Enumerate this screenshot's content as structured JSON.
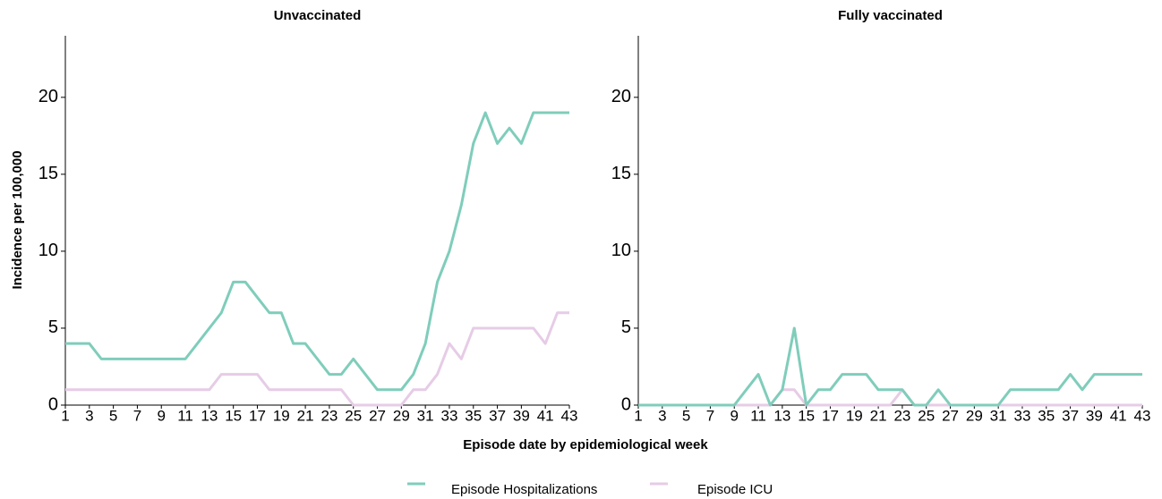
{
  "chart_data": [
    {
      "type": "line",
      "title": "Unvaccinated",
      "xlabel": "Episode date by epidemiological week",
      "ylabel": "Incidence per 100,000",
      "x": [
        1,
        2,
        3,
        4,
        5,
        6,
        7,
        8,
        9,
        10,
        11,
        12,
        13,
        14,
        15,
        16,
        17,
        18,
        19,
        20,
        21,
        22,
        23,
        24,
        25,
        26,
        27,
        28,
        29,
        30,
        31,
        32,
        33,
        34,
        35,
        36,
        37,
        38,
        39,
        40,
        41,
        42,
        43
      ],
      "series": [
        {
          "name": "Episode Hospitalizations",
          "color": "#7fcdbb",
          "values": [
            4,
            4,
            4,
            3,
            3,
            3,
            3,
            3,
            3,
            3,
            3,
            4,
            5,
            6,
            8,
            8,
            7,
            6,
            6,
            4,
            4,
            3,
            2,
            2,
            3,
            2,
            1,
            1,
            1,
            2,
            4,
            8,
            10,
            13,
            17,
            19,
            17,
            18,
            17,
            19,
            19,
            19,
            19
          ]
        },
        {
          "name": "Episode ICU",
          "color": "#e6cce6",
          "values": [
            1,
            1,
            1,
            1,
            1,
            1,
            1,
            1,
            1,
            1,
            1,
            1,
            1,
            2,
            2,
            2,
            2,
            1,
            1,
            1,
            1,
            1,
            1,
            1,
            0,
            0,
            0,
            0,
            0,
            1,
            1,
            2,
            4,
            3,
            5,
            5,
            5,
            5,
            5,
            5,
            4,
            6,
            6
          ]
        }
      ],
      "xlim": [
        1,
        43
      ],
      "xticks": [
        1,
        3,
        5,
        7,
        9,
        11,
        13,
        15,
        17,
        19,
        21,
        23,
        25,
        27,
        29,
        31,
        33,
        35,
        37,
        39,
        41,
        43
      ],
      "ylim": [
        0,
        24
      ],
      "yticks": [
        0,
        5,
        10,
        15,
        20
      ]
    },
    {
      "type": "line",
      "title": "Fully vaccinated",
      "x": [
        1,
        2,
        3,
        4,
        5,
        6,
        7,
        8,
        9,
        10,
        11,
        12,
        13,
        14,
        15,
        16,
        17,
        18,
        19,
        20,
        21,
        22,
        23,
        24,
        25,
        26,
        27,
        28,
        29,
        30,
        31,
        32,
        33,
        34,
        35,
        36,
        37,
        38,
        39,
        40,
        41,
        42,
        43
      ],
      "series": [
        {
          "name": "Episode Hospitalizations",
          "color": "#7fcdbb",
          "values": [
            0,
            0,
            0,
            0,
            0,
            0,
            0,
            0,
            0,
            1,
            2,
            0,
            1,
            5,
            0,
            1,
            1,
            2,
            2,
            2,
            1,
            1,
            1,
            0,
            0,
            1,
            0,
            0,
            0,
            0,
            0,
            1,
            1,
            1,
            1,
            1,
            2,
            1,
            2,
            2,
            2,
            2,
            2
          ]
        },
        {
          "name": "Episode ICU",
          "color": "#e6cce6",
          "values": [
            0,
            0,
            0,
            0,
            0,
            0,
            0,
            0,
            0,
            0,
            0,
            0,
            1,
            1,
            0,
            0,
            0,
            0,
            0,
            0,
            0,
            0,
            1,
            0,
            0,
            0,
            0,
            0,
            0,
            0,
            0,
            0,
            0,
            0,
            0,
            0,
            0,
            0,
            0,
            0,
            0,
            0,
            0
          ]
        }
      ],
      "xlim": [
        1,
        43
      ],
      "xticks": [
        1,
        3,
        5,
        7,
        9,
        11,
        13,
        15,
        17,
        19,
        21,
        23,
        25,
        27,
        29,
        31,
        33,
        35,
        37,
        39,
        41,
        43
      ],
      "ylim": [
        0,
        24
      ],
      "yticks": [
        0,
        5,
        10,
        15,
        20
      ]
    }
  ]
}
